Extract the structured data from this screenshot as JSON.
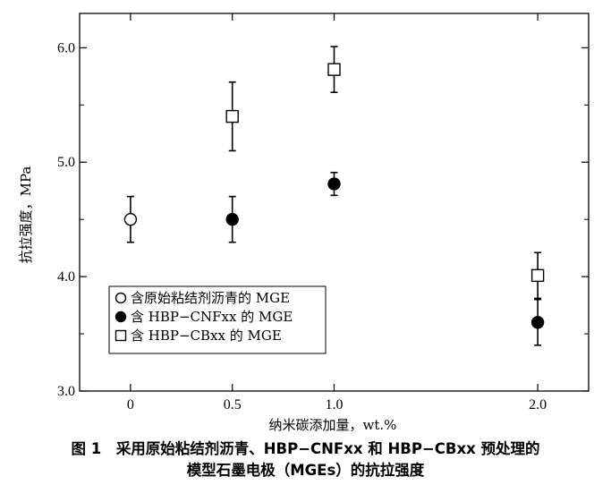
{
  "chart_data": {
    "type": "scatter",
    "ylabel": "抗拉强度，MPa",
    "xlabel": "纳米碳添加量，wt.%",
    "xticks": [
      "0",
      "0.5",
      "1.0",
      "2.0"
    ],
    "yticks": [
      "3.0",
      "4.0",
      "5.0",
      "6.0"
    ],
    "xlim": [
      -0.25,
      2.25
    ],
    "ylim": [
      3.0,
      6.3
    ],
    "grid": false,
    "legend_position": "bottom-left",
    "series": [
      {
        "name": "含原始粘结剂沥青的 MGE",
        "marker": "open-circle",
        "x": [
          0
        ],
        "y": [
          4.5
        ],
        "error": [
          0.2
        ]
      },
      {
        "name": "含 HBP−CNFxx 的 MGE",
        "marker": "filled-circle",
        "x": [
          0.5,
          1.0,
          2.0
        ],
        "y": [
          4.5,
          4.81,
          3.6
        ],
        "error": [
          0.2,
          0.1,
          0.2
        ]
      },
      {
        "name": "含 HBP−CBxx 的 MGE",
        "marker": "open-square",
        "x": [
          0.5,
          1.0,
          2.0
        ],
        "y": [
          5.4,
          5.81,
          4.01
        ],
        "error": [
          0.3,
          0.2,
          0.2
        ]
      }
    ]
  },
  "caption": {
    "line1": "图 1　采用原始粘结剂沥青、HBP−CNFxx 和 HBP−CBxx 预处理的",
    "line2": "模型石墨电极（MGEs）的抗拉强度"
  }
}
